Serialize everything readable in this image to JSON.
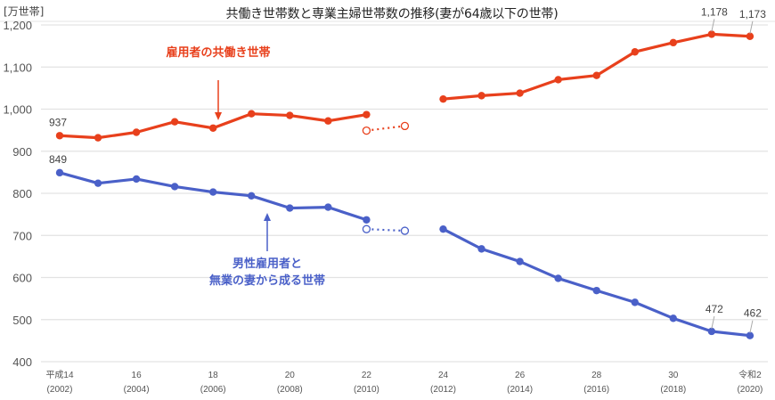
{
  "chart_data": {
    "type": "line",
    "title": "共働き世帯数と専業主婦世帯数の推移(妻が64歳以下の世帯)",
    "ylabel": "[万世帯]",
    "xlabel": "",
    "ylim": [
      400,
      1200
    ],
    "yticks": [
      "1,200",
      "1,100",
      "1,000",
      "900",
      "800",
      "700",
      "600",
      "500",
      "400"
    ],
    "grid": true,
    "legend_position": "inline annotations",
    "x": [
      "2002",
      "2003",
      "2004",
      "2005",
      "2006",
      "2007",
      "2008",
      "2009",
      "2010",
      "2011",
      "2012",
      "2013",
      "2014",
      "2015",
      "2016",
      "2017",
      "2018",
      "2019",
      "2020"
    ],
    "xtick_labels": [
      {
        "era": "平成14",
        "year": "(2002)"
      },
      {
        "era": "16",
        "year": "(2004)"
      },
      {
        "era": "18",
        "year": "(2006)"
      },
      {
        "era": "20",
        "year": "(2008)"
      },
      {
        "era": "22",
        "year": "(2010)"
      },
      {
        "era": "24",
        "year": "(2012)"
      },
      {
        "era": "26",
        "year": "(2014)"
      },
      {
        "era": "28",
        "year": "(2016)"
      },
      {
        "era": "30",
        "year": "(2018)"
      },
      {
        "era": "令和2",
        "year": "(2020)"
      }
    ],
    "series": [
      {
        "name": "雇用者の共働き世帯",
        "color": "#e8401c",
        "values": [
          937,
          932,
          945,
          970,
          955,
          989,
          985,
          972,
          987,
          null,
          1024,
          1032,
          1038,
          1070,
          1080,
          1136,
          1158,
          1178,
          1173
        ],
        "dotted_segment": {
          "x": [
            "2010",
            "2011"
          ],
          "values": [
            949,
            960
          ]
        },
        "data_labels": {
          "2002": "937",
          "2019": "1,178",
          "2020": "1,173"
        }
      },
      {
        "name": "男性雇用者と無業の妻から成る世帯",
        "color": "#4a60c8",
        "values": [
          849,
          824,
          834,
          816,
          803,
          794,
          765,
          767,
          737,
          null,
          715,
          668,
          638,
          598,
          569,
          541,
          503,
          472,
          462
        ],
        "dotted_segment": {
          "x": [
            "2010",
            "2011"
          ],
          "values": [
            715,
            711
          ]
        },
        "data_labels": {
          "2002": "849",
          "2019": "472",
          "2020": "462"
        }
      }
    ]
  },
  "annotations": {
    "red_label": "雇用者の共働き世帯",
    "blue_label_line1": "男性雇用者と",
    "blue_label_line2": "無業の妻から成る世帯"
  }
}
